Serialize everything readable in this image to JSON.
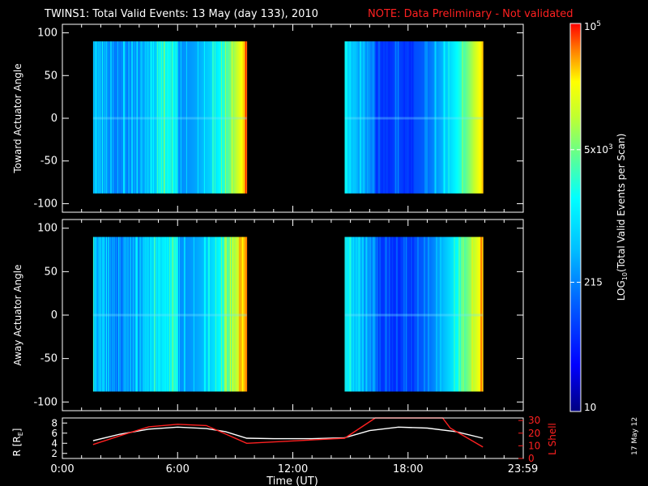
{
  "header": {
    "title": "TWINS1: Total Valid Events: 13 May (day 133), 2010",
    "note": "NOTE: Data Preliminary - Not validated",
    "note_color": "#ff2020"
  },
  "stamp": "17 May 12",
  "chart_data": [
    {
      "type": "heatmap",
      "ylabel": "Toward Actuator Angle",
      "ylim": [
        -110,
        110
      ],
      "yticks": [
        "100",
        "50",
        "0",
        "-50",
        "-100"
      ],
      "ytick_values": [
        100,
        50,
        0,
        -50,
        -100
      ],
      "xlim": [
        0,
        24
      ],
      "data_ranges": [
        [
          1.6,
          9.6
        ],
        [
          14.7,
          21.9
        ]
      ],
      "angle_range": [
        -88,
        90
      ]
    },
    {
      "type": "heatmap",
      "ylabel": "Away Actuator Angle",
      "ylim": [
        -110,
        110
      ],
      "yticks": [
        "100",
        "50",
        "0",
        "-50",
        "-100"
      ],
      "ytick_values": [
        100,
        50,
        0,
        -50,
        -100
      ],
      "xlim": [
        0,
        24
      ],
      "data_ranges": [
        [
          1.6,
          9.6
        ],
        [
          14.7,
          21.9
        ]
      ],
      "angle_range": [
        -88,
        90
      ]
    },
    {
      "type": "line",
      "xlabel": "Time (UT)",
      "xticks": [
        "0:00",
        "6:00",
        "12:00",
        "18:00",
        "23:59"
      ],
      "xtick_values": [
        0,
        6,
        12,
        18,
        23.98
      ],
      "xlim": [
        0,
        24
      ],
      "left_axis": {
        "label": "R [RE]",
        "ylim": [
          1,
          9
        ],
        "yticks": [
          "8",
          "6",
          "4",
          "2"
        ],
        "ytick_values": [
          8,
          6,
          4,
          2
        ],
        "color": "#ffffff"
      },
      "right_axis": {
        "label": "L Shell",
        "ylim": [
          0,
          32
        ],
        "yticks": [
          "30",
          "20",
          "10",
          "0"
        ],
        "ytick_values": [
          30,
          20,
          10,
          0
        ],
        "color": "#ff2020"
      },
      "series": [
        {
          "axis": "left",
          "color": "#ffffff",
          "x": [
            1.6,
            3,
            4.5,
            6,
            7.5,
            8.5,
            9.6,
            11,
            13,
            14.7,
            16,
            17.5,
            19,
            20.5,
            21.9
          ],
          "y": [
            4.5,
            5.8,
            6.8,
            7.2,
            6.9,
            6.3,
            5.0,
            4.9,
            4.9,
            5.1,
            6.5,
            7.2,
            7.0,
            6.3,
            5.0
          ]
        },
        {
          "axis": "right",
          "color": "#ff2020",
          "x": [
            1.6,
            3,
            4.5,
            6,
            7.5,
            9.6,
            14.7,
            16.3,
            19.8,
            20.2,
            21.9
          ],
          "y": [
            11,
            18,
            25,
            27,
            26,
            12,
            16,
            32,
            32,
            24,
            9
          ]
        }
      ]
    }
  ],
  "colorbar": {
    "label": "LOG10(Total Valid Events per Scan)",
    "ticks": [
      "10",
      "215",
      "5x10^3",
      "10^5"
    ],
    "tick_values": [
      10,
      215,
      5000,
      100000
    ],
    "min": 10,
    "max": 100000,
    "colors": [
      "#000080",
      "#0000ff",
      "#0060ff",
      "#00c0ff",
      "#00ffff",
      "#60ff90",
      "#c0ff30",
      "#ffff00",
      "#ff8000",
      "#ff0000"
    ]
  }
}
